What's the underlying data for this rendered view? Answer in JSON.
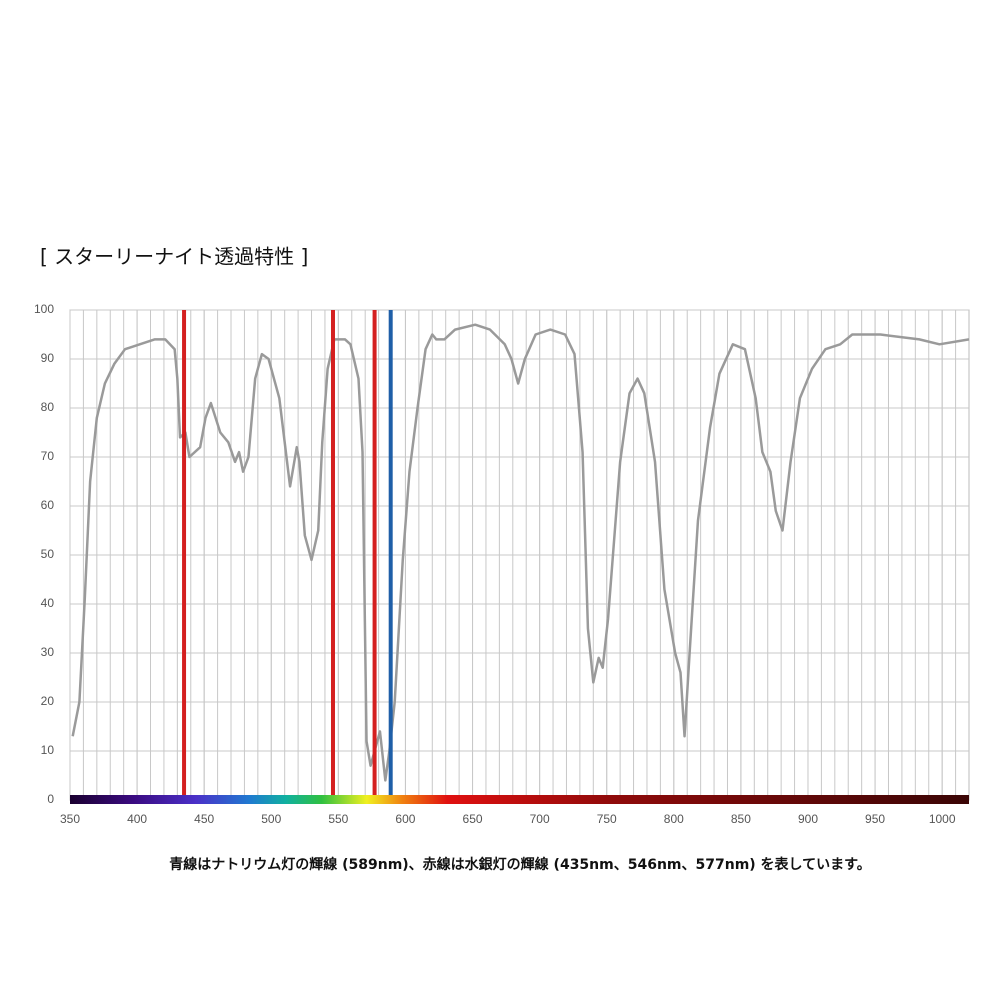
{
  "chart_data": {
    "type": "line",
    "title": "[ スターリーナイト透過特性 ]",
    "caption": "青線はナトリウム灯の輝線 (589nm)、赤線は水銀灯の輝線 (435nm、546nm、577nm) を表しています。",
    "x": [
      352,
      357,
      361,
      365,
      370,
      376,
      383,
      391,
      402,
      413,
      421,
      428,
      430,
      432,
      436,
      439,
      447,
      451,
      455,
      462,
      468,
      473,
      476,
      479,
      483,
      488,
      493,
      498,
      506,
      510,
      514,
      519,
      521,
      525,
      530,
      535,
      538,
      542,
      547,
      555,
      559,
      565,
      568,
      571,
      574,
      577,
      581,
      585,
      588,
      592,
      598,
      603,
      609,
      615,
      620,
      623,
      629,
      637,
      652,
      663,
      674,
      679,
      684,
      689,
      697,
      708,
      719,
      726,
      732,
      736,
      740,
      744,
      747,
      751,
      760,
      767,
      773,
      778,
      786,
      793,
      801,
      805,
      808,
      812,
      818,
      827,
      834,
      844,
      853,
      861,
      866,
      872,
      876,
      881,
      887,
      894,
      903,
      913,
      924,
      933,
      954,
      983,
      998,
      1020
    ],
    "series": [
      {
        "color": "#9a9a9a",
        "values": [
          13,
          20,
          41,
          65,
          78,
          85,
          89,
          92,
          93,
          94,
          94,
          92,
          86,
          74,
          75,
          70,
          72,
          78,
          81,
          75,
          73,
          69,
          71,
          67,
          70,
          86,
          91,
          90,
          82,
          73,
          64,
          72,
          69,
          54,
          49,
          55,
          73,
          88,
          94,
          94,
          93,
          86,
          71,
          12,
          7,
          10,
          14,
          4,
          10,
          20,
          49,
          67,
          80,
          92,
          95,
          94,
          94,
          96,
          97,
          96,
          93,
          90,
          85,
          90,
          95,
          96,
          95,
          91,
          71,
          35,
          24,
          29,
          27,
          37,
          69,
          83,
          86,
          83,
          69,
          43,
          30,
          26,
          13,
          31,
          57,
          76,
          87,
          93,
          92,
          82,
          71,
          67,
          59,
          55,
          69,
          82,
          88,
          92,
          93,
          95,
          95,
          94,
          93,
          94
        ]
      }
    ],
    "lines": [
      {
        "value": 435,
        "color": "#d42020"
      },
      {
        "value": 546,
        "color": "#d42020"
      },
      {
        "value": 577,
        "color": "#d42020"
      },
      {
        "value": 589,
        "color": "#1f5fa8"
      }
    ],
    "xlim": [
      350,
      1020
    ],
    "ylim": [
      0,
      100
    ],
    "xticks": [
      350,
      400,
      450,
      500,
      550,
      600,
      650,
      700,
      750,
      800,
      850,
      900,
      950,
      1000
    ],
    "yticks": [
      0,
      10,
      20,
      30,
      40,
      50,
      60,
      70,
      80,
      90,
      100
    ],
    "grid": true
  }
}
